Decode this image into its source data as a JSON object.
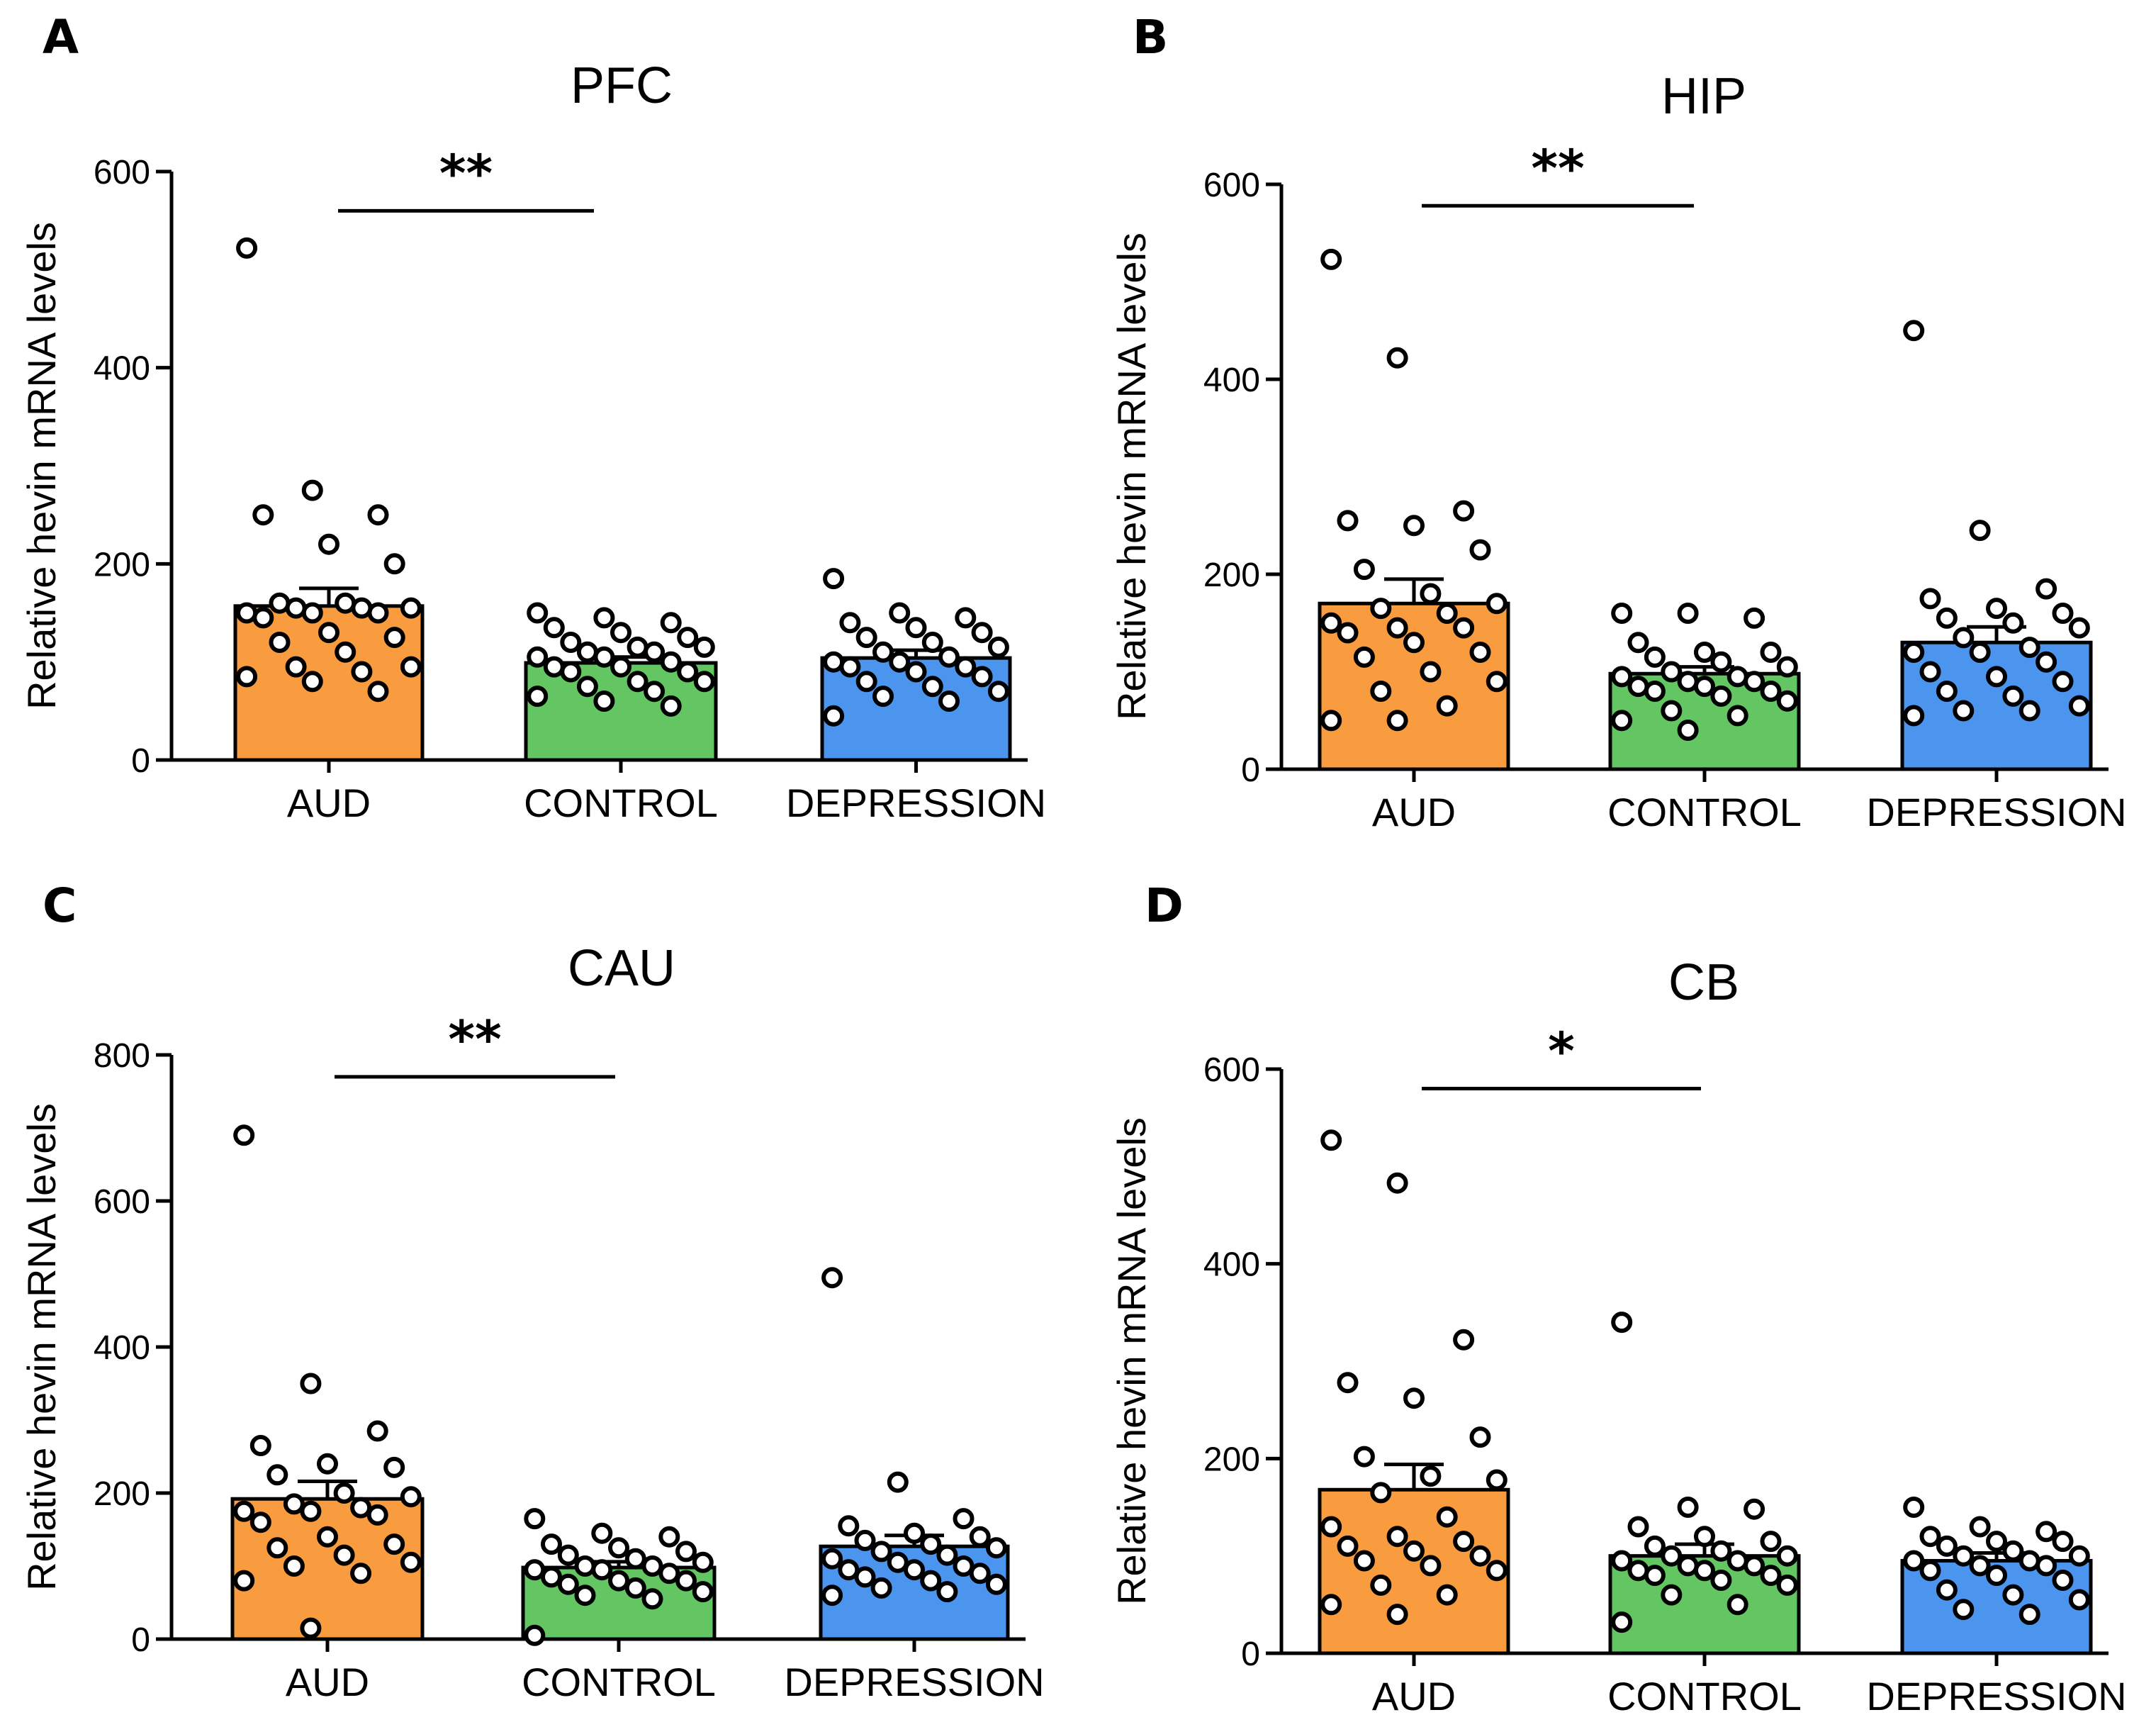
{
  "chart_data": [
    {
      "panel": "A",
      "type": "bar",
      "title": "PFC",
      "xlabel": "",
      "ylabel": "Relative hevin mRNA levels",
      "ylim": [
        0,
        600
      ],
      "yticks": [
        0,
        200,
        400,
        600
      ],
      "categories": [
        "AUD",
        "CONTROL",
        "DEPRESSION"
      ],
      "colors": [
        "#f99b3f",
        "#63c663",
        "#4b95ee"
      ],
      "values": [
        157,
        99,
        104
      ],
      "sem": [
        18,
        6,
        8
      ],
      "points": [
        [
          522,
          275,
          250,
          250,
          220,
          200,
          160,
          160,
          155,
          155,
          155,
          150,
          150,
          150,
          145,
          130,
          125,
          120,
          110,
          95,
          95,
          90,
          85,
          80,
          70
        ],
        [
          150,
          145,
          140,
          135,
          130,
          125,
          120,
          115,
          115,
          110,
          110,
          105,
          105,
          100,
          95,
          95,
          90,
          90,
          80,
          80,
          75,
          70,
          65,
          60,
          55
        ],
        [
          185,
          150,
          145,
          140,
          135,
          130,
          125,
          120,
          115,
          110,
          105,
          100,
          100,
          95,
          95,
          90,
          85,
          80,
          75,
          70,
          65,
          60,
          45
        ]
      ],
      "significance": {
        "from": 0,
        "to": 1,
        "label": "**",
        "y": 560
      }
    },
    {
      "panel": "B",
      "type": "bar",
      "title": "HIP",
      "xlabel": "",
      "ylabel": "Relative hevin mRNA levels",
      "ylim": [
        0,
        600
      ],
      "yticks": [
        0,
        200,
        400,
        600
      ],
      "categories": [
        "AUD",
        "CONTROL",
        "DEPRESSION"
      ],
      "colors": [
        "#f99b3f",
        "#63c663",
        "#4b95ee"
      ],
      "values": [
        170,
        98,
        130
      ],
      "sem": [
        25,
        7,
        16
      ],
      "points": [
        [
          523,
          422,
          265,
          255,
          250,
          225,
          205,
          180,
          170,
          165,
          160,
          150,
          145,
          145,
          140,
          130,
          120,
          115,
          100,
          90,
          80,
          65,
          50,
          50
        ],
        [
          160,
          160,
          155,
          130,
          120,
          120,
          115,
          110,
          105,
          100,
          95,
          95,
          90,
          90,
          85,
          85,
          80,
          80,
          75,
          70,
          60,
          55,
          50,
          40
        ],
        [
          450,
          245,
          185,
          175,
          165,
          160,
          155,
          150,
          145,
          135,
          125,
          120,
          120,
          110,
          100,
          95,
          90,
          80,
          75,
          65,
          60,
          60,
          55
        ]
      ],
      "significance": {
        "from": 0,
        "to": 1,
        "label": "**",
        "y": 578
      }
    },
    {
      "panel": "C",
      "type": "bar",
      "title": "CAU",
      "xlabel": "",
      "ylabel": "Relative hevin mRNA levels",
      "ylim": [
        0,
        800
      ],
      "yticks": [
        0,
        200,
        400,
        600,
        800
      ],
      "categories": [
        "AUD",
        "CONTROL",
        "DEPRESSION"
      ],
      "colors": [
        "#f99b3f",
        "#63c663",
        "#4b95ee"
      ],
      "values": [
        192,
        98,
        127
      ],
      "sem": [
        24,
        8,
        15
      ],
      "points": [
        [
          690,
          350,
          285,
          265,
          240,
          235,
          225,
          200,
          195,
          185,
          180,
          175,
          175,
          170,
          160,
          140,
          130,
          125,
          115,
          105,
          100,
          90,
          80,
          15
        ],
        [
          165,
          145,
          140,
          130,
          125,
          120,
          115,
          110,
          105,
          100,
          100,
          95,
          95,
          90,
          85,
          80,
          80,
          75,
          70,
          65,
          60,
          55,
          5
        ],
        [
          495,
          215,
          165,
          155,
          145,
          140,
          135,
          130,
          125,
          120,
          115,
          110,
          105,
          100,
          95,
          95,
          90,
          85,
          80,
          75,
          70,
          65,
          60
        ]
      ],
      "significance": {
        "from": 0,
        "to": 1,
        "label": "**",
        "y": 770
      }
    },
    {
      "panel": "D",
      "type": "bar",
      "title": "CB",
      "xlabel": "",
      "ylabel": "Relative hevin mRNA levels",
      "ylim": [
        0,
        600
      ],
      "yticks": [
        0,
        200,
        400,
        600
      ],
      "categories": [
        "AUD",
        "CONTROL",
        "DEPRESSION"
      ],
      "colors": [
        "#f99b3f",
        "#63c663",
        "#4b95ee"
      ],
      "values": [
        168,
        100,
        95
      ],
      "sem": [
        26,
        12,
        8
      ],
      "points": [
        [
          527,
          483,
          322,
          278,
          262,
          222,
          202,
          182,
          178,
          165,
          140,
          130,
          120,
          115,
          110,
          105,
          100,
          95,
          90,
          85,
          70,
          60,
          50,
          40
        ],
        [
          340,
          150,
          148,
          130,
          120,
          115,
          110,
          105,
          100,
          100,
          95,
          95,
          90,
          90,
          85,
          85,
          80,
          80,
          75,
          70,
          60,
          50,
          32
        ],
        [
          150,
          130,
          125,
          120,
          115,
          115,
          110,
          105,
          100,
          100,
          95,
          95,
          90,
          90,
          85,
          80,
          75,
          65,
          60,
          55,
          45,
          40
        ]
      ],
      "significance": {
        "from": 0,
        "to": 1,
        "label": "*",
        "y": 580
      }
    }
  ]
}
